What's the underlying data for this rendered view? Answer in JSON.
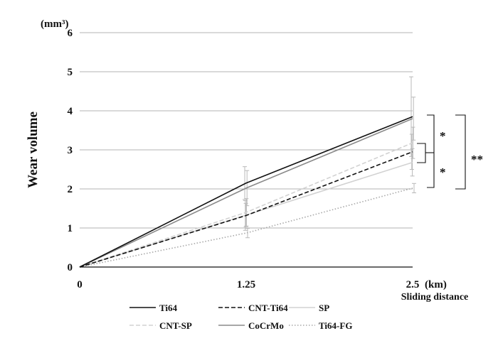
{
  "chart_data": {
    "type": "line",
    "ylabel": "Wear volume",
    "y_unit_label": "(mm³)",
    "xlabel": "Sliding distance",
    "x_unit_label": "(km)",
    "x": [
      0,
      1.25,
      2.5
    ],
    "x_tick_labels": [
      "0",
      "1.25",
      "2.5"
    ],
    "xlim": [
      0,
      2.5
    ],
    "ylim": [
      0,
      6
    ],
    "y_ticks": [
      0,
      1,
      2,
      3,
      4,
      5,
      6
    ],
    "y_tick_labels": [
      "0",
      "1",
      "2",
      "3",
      "4",
      "5",
      "6"
    ],
    "grid": true,
    "legend_placement": "bottom",
    "series": [
      {
        "name": "Ti64",
        "values": [
          0,
          2.15,
          3.85
        ],
        "color": "#111111",
        "dash": "solid",
        "error": [
          0,
          0.42,
          1.02
        ]
      },
      {
        "name": "CNT-Ti64",
        "values": [
          0,
          1.32,
          2.95
        ],
        "color": "#111111",
        "dash": "dashed",
        "error": [
          0,
          0.38,
          0.45
        ]
      },
      {
        "name": "SP",
        "values": [
          0,
          1.33,
          2.68
        ],
        "color": "#d2d2d2",
        "dash": "solid",
        "error": [
          0,
          0.3,
          0.35
        ]
      },
      {
        "name": "CNT-SP",
        "values": [
          0,
          1.4,
          3.18
        ],
        "color": "#d2d2d2",
        "dash": "dashed",
        "error": [
          0,
          0.35,
          0.4
        ]
      },
      {
        "name": "CoCrMo",
        "values": [
          0,
          2.02,
          3.8
        ],
        "color": "#8a8a8a",
        "dash": "solid",
        "error": [
          0,
          0.45,
          0.55
        ]
      },
      {
        "name": "Ti64-FG",
        "values": [
          0,
          0.87,
          2.02
        ],
        "color": "#a8a8a8",
        "dash": "dotted",
        "error": [
          0,
          0.12,
          0.12
        ]
      }
    ],
    "annotations": [
      "*",
      "*",
      "**"
    ]
  }
}
